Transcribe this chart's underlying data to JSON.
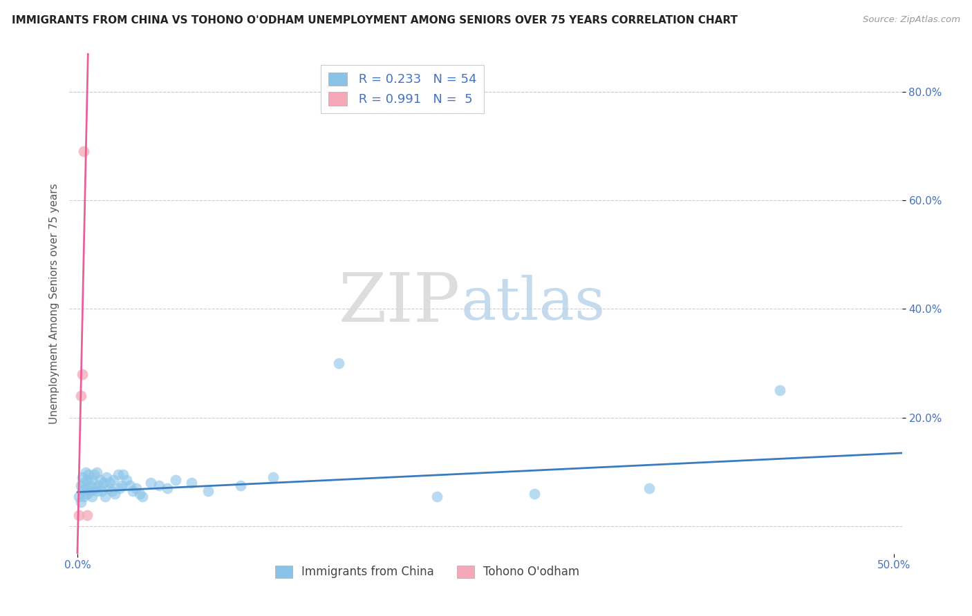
{
  "title": "IMMIGRANTS FROM CHINA VS TOHONO O'ODHAM UNEMPLOYMENT AMONG SENIORS OVER 75 YEARS CORRELATION CHART",
  "source": "Source: ZipAtlas.com",
  "ylabel_label": "Unemployment Among Seniors over 75 years",
  "xlim": [
    -0.005,
    0.505
  ],
  "ylim": [
    -0.05,
    0.87
  ],
  "xtick_values": [
    0.0,
    0.5
  ],
  "xtick_labels": [
    "0.0%",
    "50.0%"
  ],
  "ytick_values": [
    0.2,
    0.4,
    0.6,
    0.8
  ],
  "ytick_labels": [
    "20.0%",
    "40.0%",
    "60.0%",
    "80.0%"
  ],
  "background_color": "#ffffff",
  "grid_color": "#cccccc",
  "watermark_ZIP": "ZIP",
  "watermark_atlas": "atlas",
  "blue_color": "#89c4e8",
  "pink_color": "#f4a8b8",
  "blue_line_color": "#3a7bbf",
  "pink_line_color": "#e8609a",
  "legend_r1": "R = 0.233",
  "legend_n1": "N = 54",
  "legend_r2": "R = 0.991",
  "legend_n2": "N =  5",
  "legend_label1": "Immigrants from China",
  "legend_label2": "Tohono O'odham",
  "blue_scatter_x": [
    0.001,
    0.002,
    0.002,
    0.003,
    0.003,
    0.004,
    0.004,
    0.005,
    0.005,
    0.006,
    0.006,
    0.007,
    0.008,
    0.008,
    0.009,
    0.009,
    0.01,
    0.011,
    0.012,
    0.012,
    0.013,
    0.014,
    0.015,
    0.016,
    0.017,
    0.018,
    0.019,
    0.02,
    0.021,
    0.022,
    0.023,
    0.025,
    0.026,
    0.027,
    0.028,
    0.03,
    0.032,
    0.034,
    0.036,
    0.038,
    0.04,
    0.045,
    0.05,
    0.055,
    0.06,
    0.07,
    0.08,
    0.1,
    0.12,
    0.16,
    0.22,
    0.28,
    0.35,
    0.43
  ],
  "blue_scatter_y": [
    0.055,
    0.075,
    0.045,
    0.09,
    0.065,
    0.08,
    0.055,
    0.1,
    0.07,
    0.085,
    0.06,
    0.095,
    0.075,
    0.065,
    0.085,
    0.055,
    0.095,
    0.07,
    0.1,
    0.065,
    0.075,
    0.085,
    0.065,
    0.08,
    0.055,
    0.09,
    0.07,
    0.08,
    0.065,
    0.085,
    0.06,
    0.095,
    0.07,
    0.075,
    0.095,
    0.085,
    0.075,
    0.065,
    0.07,
    0.06,
    0.055,
    0.08,
    0.075,
    0.07,
    0.085,
    0.08,
    0.065,
    0.075,
    0.09,
    0.3,
    0.055,
    0.06,
    0.07,
    0.25
  ],
  "pink_scatter_x": [
    0.001,
    0.002,
    0.003,
    0.004,
    0.006
  ],
  "pink_scatter_y": [
    0.02,
    0.24,
    0.28,
    0.69,
    0.02
  ],
  "blue_trend_x": [
    0.0,
    0.505
  ],
  "blue_trend_y": [
    0.063,
    0.135
  ],
  "pink_trend_x": [
    0.0,
    0.0065
  ],
  "pink_trend_y": [
    -0.05,
    0.87
  ]
}
